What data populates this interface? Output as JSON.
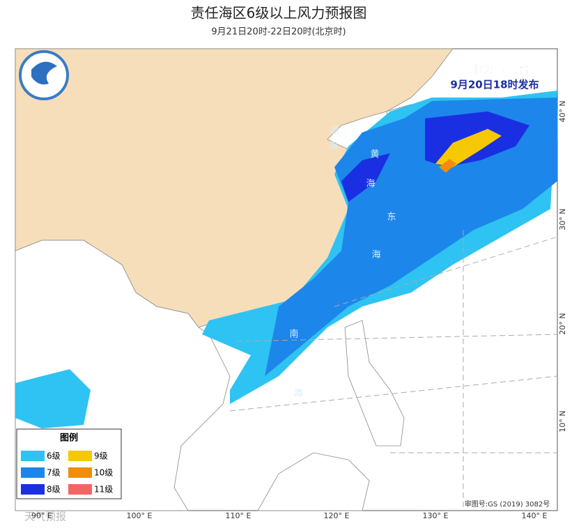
{
  "header": {
    "title": "责任海区6级以上风力预报图",
    "subtitle": "9月21日20时-22日20时(北京时)"
  },
  "issuer": {
    "name": "中央气象台",
    "time": "9月20日18时发布"
  },
  "legend": {
    "title": "图例",
    "items": [
      {
        "label": "6级",
        "color": "#2ec3f2"
      },
      {
        "label": "9级",
        "color": "#f6c800"
      },
      {
        "label": "7级",
        "color": "#1d86ea"
      },
      {
        "label": "10级",
        "color": "#f28c0a"
      },
      {
        "label": "8级",
        "color": "#1b2fe2"
      },
      {
        "label": "11级",
        "color": "#f26565"
      }
    ]
  },
  "axes": {
    "longitude": [
      "90° E",
      "100° E",
      "110° E",
      "120° E",
      "130° E",
      "140° E"
    ],
    "latitude": [
      "40° N",
      "30° N",
      "20° N",
      "10° N"
    ]
  },
  "seas": [
    "渤",
    "海",
    "黄",
    "海",
    "东",
    "海",
    "南",
    "海"
  ],
  "footer": {
    "review": "审图号:GS (2019) 3082号",
    "watermark": "天气预报"
  }
}
